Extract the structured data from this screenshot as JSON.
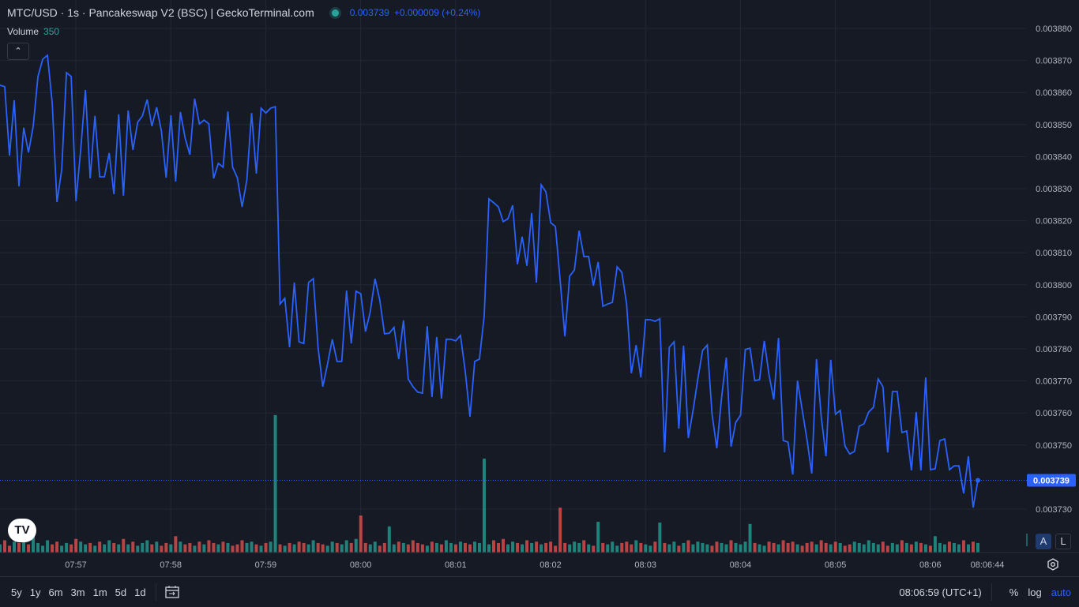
{
  "header": {
    "title": "MTC/USD · 1s · Pancakeswap V2 (BSC) | GeckoTerminal.com",
    "price": "0.003739",
    "change": "+0.000009 (+0.24%)",
    "status_icon": "market-open-dot",
    "volume_label": "Volume",
    "volume_value": "350"
  },
  "colors": {
    "line": "#2962ff",
    "up": "#26a69a",
    "down": "#ef5350",
    "background": "#161a25",
    "grid": "#232734"
  },
  "chart_data": {
    "type": "line",
    "title": "MTC/USD · 1s · Pancakeswap V2 (BSC) | GeckoTerminal.com",
    "ylim": [
      0.003725,
      0.003887
    ],
    "yticks": [
      "0.003880",
      "0.003870",
      "0.003860",
      "0.003850",
      "0.003840",
      "0.003830",
      "0.003820",
      "0.003810",
      "0.003800",
      "0.003790",
      "0.003780",
      "0.003770",
      "0.003760",
      "0.003750",
      "0.003730"
    ],
    "xticks": [
      "07:57",
      "07:58",
      "07:59",
      "08:00",
      "08:01",
      "08:02",
      "08:03",
      "08:04",
      "08:05",
      "08:06"
    ],
    "crosshair_time": "08:06:44",
    "last_price": "0.003739",
    "grid": true,
    "values": [
      0.0038623,
      0.0038618,
      0.0038403,
      0.0038576,
      0.0038307,
      0.003849,
      0.0038413,
      0.0038495,
      0.003865,
      0.0038704,
      0.0038716,
      0.0038568,
      0.0038258,
      0.0038359,
      0.0038662,
      0.003865,
      0.0038261,
      0.0038421,
      0.0038608,
      0.0038332,
      0.0038527,
      0.0038337,
      0.0038337,
      0.0038411,
      0.0038283,
      0.0038532,
      0.0038278,
      0.0038544,
      0.0038421,
      0.0038507,
      0.0038527,
      0.0038578,
      0.0038495,
      0.0038554,
      0.003848,
      0.0038334,
      0.0038529,
      0.0038322,
      0.0038539,
      0.0038458,
      0.0038406,
      0.0038581,
      0.0038502,
      0.0038514,
      0.0038502,
      0.0038332,
      0.0038379,
      0.0038367,
      0.0038541,
      0.0038367,
      0.0038334,
      0.0038243,
      0.0038327,
      0.0038536,
      0.0038347,
      0.0038551,
      0.0038536,
      0.0038551,
      0.0038556,
      0.003794,
      0.0037958,
      0.0037805,
      0.0038007,
      0.0037822,
      0.0037817,
      0.0038007,
      0.0038019,
      0.0037805,
      0.0037682,
      0.0037753,
      0.003783,
      0.0037761,
      0.0037761,
      0.0037982,
      0.0037817,
      0.003798,
      0.0037972,
      0.0037854,
      0.0037916,
      0.0038019,
      0.0037953,
      0.0037847,
      0.0037849,
      0.0037867,
      0.0037768,
      0.0037889,
      0.0037706,
      0.0037682,
      0.0037665,
      0.0037662,
      0.0037871,
      0.003765,
      0.0037837,
      0.0037645,
      0.003783,
      0.003783,
      0.0037825,
      0.0037842,
      0.0037731,
      0.0037588,
      0.0037761,
      0.0037768,
      0.0037903,
      0.0038268,
      0.0038256,
      0.0038243,
      0.0038197,
      0.0038206,
      0.0038248,
      0.0038064,
      0.003815,
      0.0038059,
      0.0038224,
      0.0038007,
      0.0038312,
      0.003829,
      0.0038194,
      0.0038182,
      0.0038014,
      0.0037839,
      0.0038027,
      0.0038046,
      0.0038169,
      0.0038088,
      0.0038088,
      0.0037997,
      0.0038071,
      0.0037933,
      0.003794,
      0.0037945,
      0.0038056,
      0.0038039,
      0.003794,
      0.0037724,
      0.0037812,
      0.0037711,
      0.0037891,
      0.0037891,
      0.0037886,
      0.0037894,
      0.0037477,
      0.0037805,
      0.0037822,
      0.0037551,
      0.003781,
      0.0037522,
      0.0037608,
      0.0037706,
      0.0037795,
      0.0037812,
      0.0037596,
      0.003749,
      0.0037647,
      0.0037773,
      0.0037495,
      0.0037571,
      0.0037593,
      0.0037798,
      0.0037802,
      0.0037701,
      0.0037704,
      0.0037825,
      0.0037719,
      0.0037642,
      0.0037834,
      0.0037514,
      0.0037509,
      0.0037408,
      0.0037701,
      0.0037608,
      0.0037517,
      0.0037411,
      0.0037768,
      0.0037588,
      0.0037465,
      0.0037766,
      0.0037596,
      0.0037608,
      0.0037497,
      0.0037472,
      0.003748,
      0.0037559,
      0.0037566,
      0.0037603,
      0.0037618,
      0.0037706,
      0.0037682,
      0.0037477,
      0.0037667,
      0.0037667,
      0.0037539,
      0.0037544,
      0.0037421,
      0.0037603,
      0.0037421,
      0.0037711,
      0.0037423,
      0.0037426,
      0.0037514,
      0.0037519,
      0.0037423,
      0.0037435,
      0.0037435,
      0.0037349,
      0.0037465,
      0.0037305,
      0.003739
    ],
    "volume": [
      300,
      450,
      250,
      400,
      350,
      500,
      300,
      600,
      350,
      250,
      450,
      300,
      400,
      250,
      350,
      300,
      500,
      400,
      300,
      350,
      250,
      400,
      300,
      450,
      350,
      300,
      500,
      300,
      400,
      250,
      350,
      450,
      300,
      400,
      250,
      350,
      300,
      600,
      400,
      300,
      350,
      250,
      400,
      300,
      450,
      350,
      300,
      400,
      350,
      250,
      300,
      450,
      350,
      400,
      300,
      250,
      350,
      400,
      5050,
      300,
      250,
      350,
      300,
      400,
      350,
      300,
      450,
      350,
      300,
      250,
      400,
      350,
      300,
      450,
      350,
      500,
      1360,
      350,
      300,
      400,
      250,
      350,
      960,
      300,
      400,
      350,
      300,
      450,
      350,
      300,
      250,
      400,
      350,
      300,
      450,
      350,
      300,
      400,
      350,
      300,
      400,
      350,
      3450,
      300,
      450,
      350,
      500,
      300,
      400,
      350,
      300,
      450,
      350,
      400,
      300,
      350,
      400,
      250,
      1650,
      350,
      300,
      400,
      350,
      450,
      300,
      250,
      1130,
      350,
      300,
      400,
      250,
      350,
      400,
      300,
      450,
      350,
      300,
      250,
      400,
      1100,
      350,
      300,
      400,
      250,
      350,
      450,
      300,
      400,
      350,
      300,
      250,
      400,
      350,
      300,
      450,
      350,
      300,
      400,
      1050,
      350,
      300,
      250,
      400,
      350,
      300,
      450,
      350,
      400,
      300,
      250,
      350,
      400,
      300,
      450,
      350,
      300,
      400,
      350,
      250,
      300,
      400,
      350,
      300,
      450,
      350,
      300,
      400,
      250,
      350,
      300,
      450,
      350,
      300,
      400,
      350,
      300,
      250,
      600,
      350,
      300,
      400,
      350,
      300,
      450,
      300,
      400,
      350
    ]
  },
  "scale_buttons": {
    "auto": "A",
    "log": "L"
  },
  "bottom": {
    "ranges": [
      "5y",
      "1y",
      "6m",
      "3m",
      "1m",
      "5d",
      "1d"
    ],
    "calendar_icon": "date-range-icon",
    "time": "08:06:59 (UTC+1)",
    "percent": "%",
    "log": "log",
    "auto": "auto"
  },
  "logo": "TV"
}
